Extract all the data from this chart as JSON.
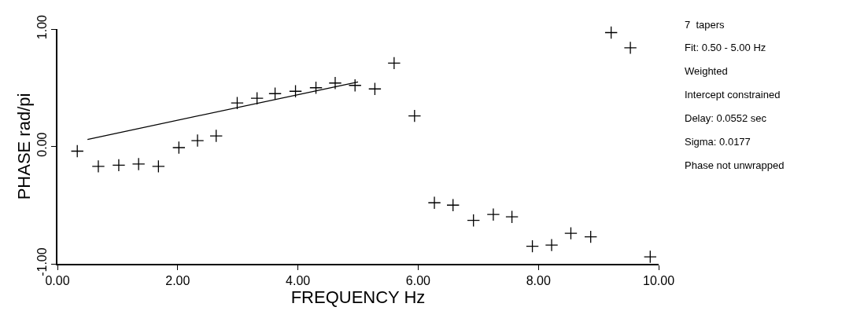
{
  "chart_data": {
    "type": "scatter",
    "xlabel": "FREQUENCY Hz",
    "ylabel": "PHASE rad/pi",
    "xlim": [
      0,
      10
    ],
    "ylim": [
      -1,
      1
    ],
    "xticks": [
      {
        "value": 0,
        "label": "0.00"
      },
      {
        "value": 2,
        "label": "2.00"
      },
      {
        "value": 4,
        "label": "4.00"
      },
      {
        "value": 6,
        "label": "6.00"
      },
      {
        "value": 8,
        "label": "8.00"
      },
      {
        "value": 10,
        "label": "10.00"
      }
    ],
    "yticks": [
      {
        "value": -1,
        "label": "-1.00"
      },
      {
        "value": 0,
        "label": "0.00"
      },
      {
        "value": 1,
        "label": "1.00"
      }
    ],
    "grid": false,
    "legend": false,
    "series": [
      {
        "marker": "cross",
        "color": "#000000",
        "x": [
          0.33,
          0.68,
          1.02,
          1.35,
          1.68,
          2.02,
          2.33,
          2.64,
          2.99,
          3.32,
          3.62,
          3.96,
          4.3,
          4.62,
          4.95,
          5.28,
          5.6,
          5.94,
          6.27,
          6.58,
          6.92,
          7.25,
          7.56,
          7.9,
          8.22,
          8.54,
          8.87,
          9.21,
          9.53,
          9.86
        ],
        "values": [
          -0.04,
          -0.17,
          -0.16,
          -0.15,
          -0.17,
          -0.01,
          0.05,
          0.09,
          0.37,
          0.41,
          0.45,
          0.47,
          0.5,
          0.54,
          0.52,
          0.49,
          0.71,
          0.26,
          -0.48,
          -0.5,
          -0.63,
          -0.58,
          -0.6,
          -0.85,
          -0.84,
          -0.74,
          -0.77,
          0.97,
          0.84,
          -0.94
        ]
      },
      {
        "type": "line",
        "color": "#000000",
        "x": [
          0.5,
          5.0
        ],
        "values": [
          0.06,
          0.55
        ],
        "line_style": "solid"
      }
    ],
    "annotations": [
      "7  tapers",
      "Fit: 0.50 - 5.00 Hz",
      "Weighted",
      "Intercept constrained",
      "Delay: 0.0552 sec",
      "Sigma: 0.0177",
      "Phase not unwrapped"
    ]
  }
}
